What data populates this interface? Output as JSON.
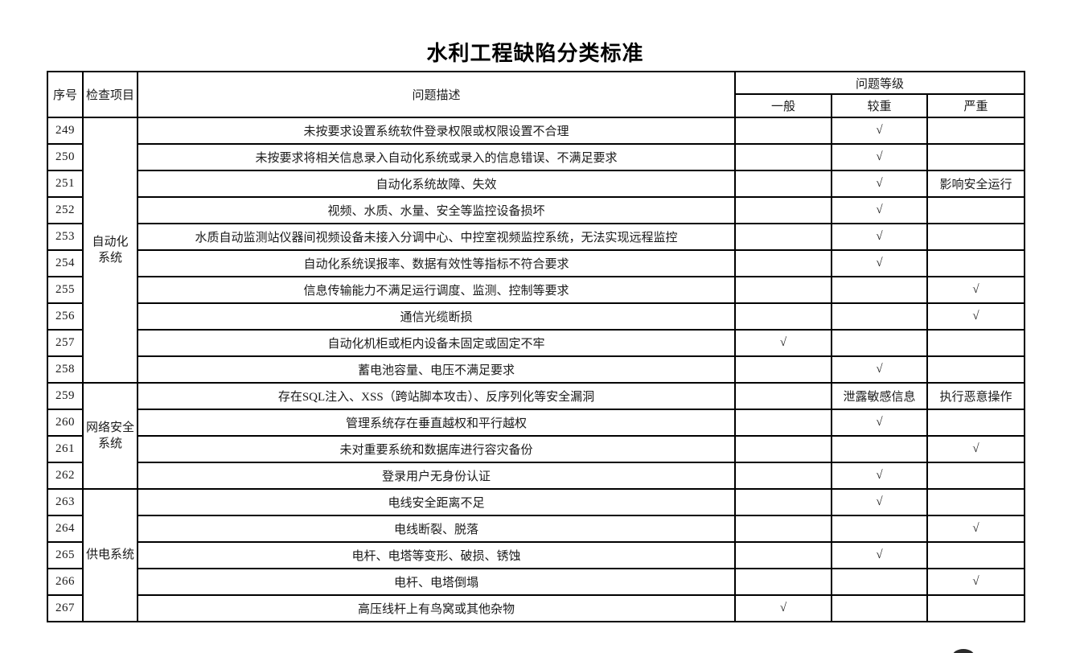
{
  "title": "水利工程缺陷分类标准",
  "table": {
    "headers": {
      "no": "序号",
      "item": "检查项目",
      "desc": "问题描述",
      "level_group": "问题等级",
      "levels": [
        "一般",
        "较重",
        "严重"
      ]
    },
    "groups": [
      {
        "name": "自动化系统",
        "label_lines": [
          "自动化",
          "系统"
        ],
        "row_count": 10
      },
      {
        "name": "网络安全系统",
        "label_lines": [
          "网络安全",
          "系统"
        ],
        "row_count": 4
      },
      {
        "name": "供电系统",
        "label_lines": [
          "供电系统"
        ],
        "row_count": 5
      }
    ],
    "check_symbol": "√",
    "rows": [
      {
        "no": "249",
        "desc": "未按要求设置系统软件登录权限或权限设置不合理",
        "levels": [
          "",
          "√",
          ""
        ]
      },
      {
        "no": "250",
        "desc": "未按要求将相关信息录入自动化系统或录入的信息错误、不满足要求",
        "levels": [
          "",
          "√",
          ""
        ]
      },
      {
        "no": "251",
        "desc": "自动化系统故障、失效",
        "levels": [
          "",
          "√",
          "影响安全运行"
        ]
      },
      {
        "no": "252",
        "desc": "视频、水质、水量、安全等监控设备损坏",
        "levels": [
          "",
          "√",
          ""
        ]
      },
      {
        "no": "253",
        "desc": "水质自动监测站仪器间视频设备未接入分调中心、中控室视频监控系统，无法实现远程监控",
        "levels": [
          "",
          "√",
          ""
        ]
      },
      {
        "no": "254",
        "desc": "自动化系统误报率、数据有效性等指标不符合要求",
        "levels": [
          "",
          "√",
          ""
        ]
      },
      {
        "no": "255",
        "desc": "信息传输能力不满足运行调度、监测、控制等要求",
        "levels": [
          "",
          "",
          "√"
        ]
      },
      {
        "no": "256",
        "desc": "通信光缆断损",
        "levels": [
          "",
          "",
          "√"
        ]
      },
      {
        "no": "257",
        "desc": "自动化机柜或柜内设备未固定或固定不牢",
        "levels": [
          "√",
          "",
          ""
        ]
      },
      {
        "no": "258",
        "desc": "蓄电池容量、电压不满足要求",
        "levels": [
          "",
          "√",
          ""
        ]
      },
      {
        "no": "259",
        "desc": "存在SQL注入、XSS（跨站脚本攻击）、反序列化等安全漏洞",
        "levels": [
          "",
          "泄露敏感信息",
          "执行恶意操作"
        ]
      },
      {
        "no": "260",
        "desc": "管理系统存在垂直越权和平行越权",
        "levels": [
          "",
          "√",
          ""
        ]
      },
      {
        "no": "261",
        "desc": "未对重要系统和数据库进行容灾备份",
        "levels": [
          "",
          "",
          "√"
        ]
      },
      {
        "no": "262",
        "desc": "登录用户无身份认证",
        "levels": [
          "",
          "√",
          ""
        ]
      },
      {
        "no": "263",
        "desc": "电线安全距离不足",
        "levels": [
          "",
          "√",
          ""
        ]
      },
      {
        "no": "264",
        "desc": "电线断裂、脱落",
        "levels": [
          "",
          "",
          "√"
        ]
      },
      {
        "no": "265",
        "desc": "电杆、电塔等变形、破损、锈蚀",
        "levels": [
          "",
          "√",
          ""
        ]
      },
      {
        "no": "266",
        "desc": "电杆、电塔倒塌",
        "levels": [
          "",
          "",
          "√"
        ]
      },
      {
        "no": "267",
        "desc": "高压线杆上有鸟窝或其他杂物",
        "levels": [
          "√",
          "",
          ""
        ]
      }
    ]
  },
  "decorations": {
    "partial_circle_color": "#2b2b2b"
  },
  "colors": {
    "border": "#000000",
    "text": "#1a1a1a",
    "background": "#ffffff"
  }
}
